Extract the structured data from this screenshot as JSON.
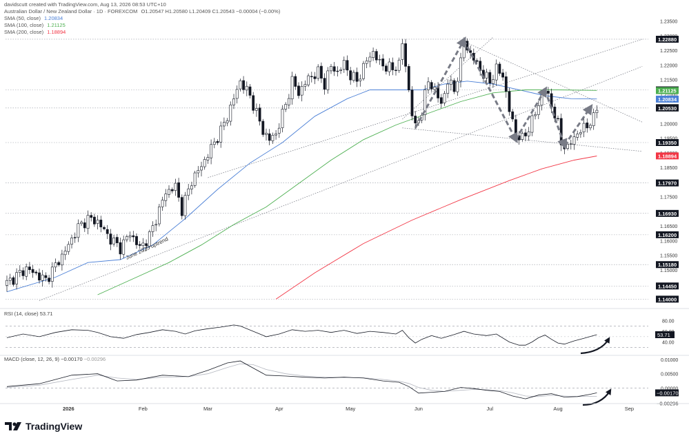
{
  "header": {
    "created": "davidscutt created with TradingView.com, Aug 13, 2026 08:53 UTC+10",
    "symbol": "Australian Dollar / New Zealand Dollar · 1D · FOREXCOM",
    "ohlc": "O1.20547 H1.20580 L1.20409 C1.20543 −0.00004 (−0.00%)",
    "sma": [
      {
        "label": "SMA (50, close)",
        "value": "1.20834",
        "color": "#4a7fd6"
      },
      {
        "label": "SMA (100, close)",
        "value": "1.21125",
        "color": "#4caf50"
      },
      {
        "label": "SMA (200, close)",
        "value": "1.18894",
        "color": "#f23645"
      }
    ]
  },
  "indicators": {
    "rsi_label": "RSI (14, close)",
    "rsi_value": "53.71",
    "macd_label": "MACD (close, 12, 26, 9)",
    "macd_value": "−0.00170",
    "macd_signal": "−0.00296"
  },
  "logo": "TradingView",
  "chart_data": {
    "type": "candlestick",
    "price_axis": {
      "range": [
        1.1375,
        1.2375
      ],
      "ticks": [
        "1.23500",
        "1.23000",
        "1.22500",
        "1.22000",
        "1.21500",
        "1.21000",
        "1.20500",
        "1.20000",
        "1.19500",
        "1.19000",
        "1.18500",
        "1.18000",
        "1.17500",
        "1.17000",
        "1.16500",
        "1.16000",
        "1.15500",
        "1.15000",
        "1.14500",
        "1.14000"
      ],
      "levels": [
        {
          "price": 1.2288,
          "label": "1.22880"
        },
        {
          "price": 1.2115,
          "label": "1.21150"
        },
        {
          "price": 1.2053,
          "label": "1.20530"
        },
        {
          "price": 1.1935,
          "label": "1.19350"
        },
        {
          "price": 1.1797,
          "label": "1.17970"
        },
        {
          "price": 1.1693,
          "label": "1.16930"
        },
        {
          "price": 1.162,
          "label": "1.16200"
        },
        {
          "price": 1.1518,
          "label": "1.15180"
        },
        {
          "price": 1.1445,
          "label": "1.14450"
        },
        {
          "price": 1.14,
          "label": "1.14000"
        }
      ],
      "tags": [
        {
          "price": 1.2288,
          "label": "1.22880",
          "bg": "#131722",
          "fg": "#ffffff"
        },
        {
          "price": 1.2115,
          "label": "1.21150",
          "bg": "#131722",
          "fg": "#ffffff"
        },
        {
          "price": 1.21125,
          "label": "1.21125",
          "bg": "#4caf50",
          "fg": "#ffffff"
        },
        {
          "price": 1.20834,
          "label": "1.20834",
          "bg": "#4a7fd6",
          "fg": "#ffffff"
        },
        {
          "price": 1.20543,
          "label": "1.20543",
          "bg": "#131722",
          "fg": "#ffffff"
        },
        {
          "price": 1.2053,
          "label": "1.20530",
          "bg": "#131722",
          "fg": "#ffffff"
        },
        {
          "price": 1.1935,
          "label": "1.19350",
          "bg": "#131722",
          "fg": "#ffffff"
        },
        {
          "price": 1.18894,
          "label": "1.18894",
          "bg": "#f23645",
          "fg": "#ffffff"
        },
        {
          "price": 1.1797,
          "label": "1.17970",
          "bg": "#131722",
          "fg": "#ffffff"
        },
        {
          "price": 1.1693,
          "label": "1.16930",
          "bg": "#131722",
          "fg": "#ffffff"
        },
        {
          "price": 1.162,
          "label": "1.16200",
          "bg": "#131722",
          "fg": "#ffffff"
        },
        {
          "price": 1.1518,
          "label": "1.15180",
          "bg": "#131722",
          "fg": "#ffffff"
        },
        {
          "price": 1.1445,
          "label": "1.14450",
          "bg": "#131722",
          "fg": "#ffffff"
        },
        {
          "price": 1.14,
          "label": "1.14000",
          "bg": "#131722",
          "fg": "#ffffff"
        }
      ]
    },
    "time_axis": {
      "labels": [
        "2026",
        "Feb",
        "Mar",
        "Apr",
        "May",
        "Jun",
        "Jul",
        "Aug",
        "Sep"
      ],
      "bar_index": [
        19,
        42,
        62,
        84,
        106,
        127,
        149,
        170,
        192
      ]
    },
    "close_anchors": [
      [
        0,
        1.1455
      ],
      [
        6,
        1.1505
      ],
      [
        12,
        1.1465
      ],
      [
        18,
        1.1565
      ],
      [
        22,
        1.1645
      ],
      [
        25,
        1.1675
      ],
      [
        28,
        1.1665
      ],
      [
        32,
        1.1605
      ],
      [
        35,
        1.1575
      ],
      [
        38,
        1.1625
      ],
      [
        41,
        1.1575
      ],
      [
        44,
        1.1615
      ],
      [
        46,
        1.1675
      ],
      [
        49,
        1.1765
      ],
      [
        52,
        1.1785
      ],
      [
        54,
        1.1705
      ],
      [
        57,
        1.1805
      ],
      [
        60,
        1.1855
      ],
      [
        63,
        1.1915
      ],
      [
        66,
        1.1975
      ],
      [
        68,
        1.2025
      ],
      [
        70,
        1.2085
      ],
      [
        72,
        1.2145
      ],
      [
        75,
        1.2095
      ],
      [
        77,
        1.2035
      ],
      [
        79,
        1.1975
      ],
      [
        81,
        1.1945
      ],
      [
        83,
        1.1965
      ],
      [
        86,
        1.2065
      ],
      [
        88,
        1.2145
      ],
      [
        90,
        1.2105
      ],
      [
        93,
        1.2155
      ],
      [
        96,
        1.2175
      ],
      [
        98,
        1.2135
      ],
      [
        100,
        1.2195
      ],
      [
        102,
        1.2175
      ],
      [
        104,
        1.2205
      ],
      [
        106,
        1.2165
      ],
      [
        108,
        1.2145
      ],
      [
        111,
        1.2215
      ],
      [
        113,
        1.2245
      ],
      [
        115,
        1.2205
      ],
      [
        117,
        1.2195
      ],
      [
        119,
        1.2185
      ],
      [
        121,
        1.2205
      ],
      [
        122,
        1.2275
      ],
      [
        123,
        1.2195
      ],
      [
        125,
        1.2035
      ],
      [
        126,
        1.1985
      ],
      [
        128,
        1.2045
      ],
      [
        130,
        1.2145
      ],
      [
        132,
        1.2115
      ],
      [
        134,
        1.2065
      ],
      [
        136,
        1.2145
      ],
      [
        138,
        1.2115
      ],
      [
        140,
        1.2205
      ],
      [
        141,
        1.2285
      ],
      [
        143,
        1.2235
      ],
      [
        145,
        1.2205
      ],
      [
        147,
        1.2165
      ],
      [
        149,
        1.2145
      ],
      [
        151,
        1.2185
      ],
      [
        153,
        1.2165
      ],
      [
        155,
        1.2045
      ],
      [
        157,
        1.1965
      ],
      [
        159,
        1.1945
      ],
      [
        161,
        1.1985
      ],
      [
        163,
        1.2035
      ],
      [
        165,
        1.2095
      ],
      [
        166,
        1.2115
      ],
      [
        168,
        1.2065
      ],
      [
        170,
        1.1995
      ],
      [
        171,
        1.1935
      ],
      [
        173,
        1.1915
      ],
      [
        175,
        1.1955
      ],
      [
        177,
        1.1975
      ],
      [
        179,
        1.1995
      ],
      [
        181,
        1.2015
      ],
      [
        182,
        1.2054
      ]
    ],
    "sma": [
      {
        "name": "SMA (50, close)",
        "color": "#4a7fd6",
        "points": [
          [
            0,
            1.1425
          ],
          [
            15,
            1.1475
          ],
          [
            25,
            1.1525
          ],
          [
            35,
            1.1535
          ],
          [
            45,
            1.1585
          ],
          [
            55,
            1.1675
          ],
          [
            65,
            1.1775
          ],
          [
            75,
            1.1865
          ],
          [
            85,
            1.1935
          ],
          [
            95,
            1.2025
          ],
          [
            105,
            1.2085
          ],
          [
            112,
            1.2115
          ],
          [
            120,
            1.2115
          ],
          [
            128,
            1.2115
          ],
          [
            135,
            1.2135
          ],
          [
            142,
            1.2145
          ],
          [
            150,
            1.2135
          ],
          [
            158,
            1.2115
          ],
          [
            166,
            1.2095
          ],
          [
            174,
            1.2085
          ],
          [
            182,
            1.2084
          ]
        ]
      },
      {
        "name": "SMA (100, close)",
        "color": "#4caf50",
        "points": [
          [
            28,
            1.1415
          ],
          [
            40,
            1.1475
          ],
          [
            50,
            1.1525
          ],
          [
            60,
            1.1585
          ],
          [
            70,
            1.1655
          ],
          [
            80,
            1.1715
          ],
          [
            90,
            1.1795
          ],
          [
            100,
            1.1875
          ],
          [
            110,
            1.1945
          ],
          [
            120,
            1.1995
          ],
          [
            130,
            1.2035
          ],
          [
            140,
            1.2075
          ],
          [
            150,
            1.2105
          ],
          [
            160,
            1.2115
          ],
          [
            170,
            1.2115
          ],
          [
            182,
            1.2113
          ]
        ]
      },
      {
        "name": "SMA (200, close)",
        "color": "#f23645",
        "points": [
          [
            83,
            1.14
          ],
          [
            95,
            1.149
          ],
          [
            110,
            1.159
          ],
          [
            125,
            1.167
          ],
          [
            140,
            1.174
          ],
          [
            155,
            1.1805
          ],
          [
            165,
            1.1845
          ],
          [
            175,
            1.1875
          ],
          [
            182,
            1.1889
          ]
        ]
      }
    ],
    "trendlines": [
      {
        "from": [
          62,
          1.1815
        ],
        "to": [
          196,
          1.2288
        ],
        "style": "dotted"
      },
      {
        "from": [
          10,
          1.1395
        ],
        "to": [
          196,
          1.2195
        ],
        "style": "dotted"
      },
      {
        "from": [
          122,
          1.1985
        ],
        "to": [
          196,
          1.1905
        ],
        "style": "dotted"
      },
      {
        "from": [
          122,
          1.2015
        ],
        "to": [
          150,
          1.2295
        ],
        "style": "dotted"
      },
      {
        "from": [
          140,
          1.2285
        ],
        "to": [
          196,
          1.2005
        ],
        "style": "dotted"
      }
    ],
    "pattern_arrows": [
      [
        [
          126,
          1.1985
        ],
        [
          141,
          1.2285
        ]
      ],
      [
        [
          141,
          1.2285
        ],
        [
          157,
          1.1945
        ]
      ],
      [
        [
          157,
          1.1945
        ],
        [
          166,
          1.2115
        ]
      ],
      [
        [
          166,
          1.2115
        ],
        [
          172,
          1.1925
        ]
      ],
      [
        [
          172,
          1.1925
        ],
        [
          180,
          1.2055
        ]
      ]
    ],
    "annotation": {
      "text": "June 2025 uptrend",
      "at": [
        37,
        1.1535
      ],
      "angle": -25
    },
    "rsi": {
      "range": [
        20,
        90
      ],
      "ticks": [
        "80.00",
        "60.00",
        "40.00"
      ],
      "band": [
        30,
        70
      ],
      "mid": 50,
      "points": [
        [
          0,
          48
        ],
        [
          5,
          55
        ],
        [
          10,
          50
        ],
        [
          15,
          58
        ],
        [
          20,
          63
        ],
        [
          25,
          62
        ],
        [
          28,
          58
        ],
        [
          32,
          50
        ],
        [
          36,
          47
        ],
        [
          40,
          54
        ],
        [
          44,
          58
        ],
        [
          48,
          63
        ],
        [
          52,
          60
        ],
        [
          55,
          55
        ],
        [
          58,
          61
        ],
        [
          62,
          65
        ],
        [
          66,
          68
        ],
        [
          70,
          72
        ],
        [
          72,
          70
        ],
        [
          76,
          60
        ],
        [
          80,
          50
        ],
        [
          84,
          55
        ],
        [
          88,
          63
        ],
        [
          92,
          60
        ],
        [
          96,
          62
        ],
        [
          100,
          58
        ],
        [
          104,
          62
        ],
        [
          108,
          56
        ],
        [
          112,
          60
        ],
        [
          116,
          58
        ],
        [
          120,
          55
        ],
        [
          122,
          62
        ],
        [
          124,
          48
        ],
        [
          126,
          38
        ],
        [
          128,
          45
        ],
        [
          131,
          52
        ],
        [
          134,
          47
        ],
        [
          138,
          54
        ],
        [
          141,
          60
        ],
        [
          144,
          55
        ],
        [
          148,
          52
        ],
        [
          151,
          55
        ],
        [
          155,
          40
        ],
        [
          158,
          34
        ],
        [
          160,
          34
        ],
        [
          162,
          40
        ],
        [
          164,
          48
        ],
        [
          166,
          53
        ],
        [
          168,
          45
        ],
        [
          170,
          38
        ],
        [
          172,
          36
        ],
        [
          175,
          42
        ],
        [
          178,
          47
        ],
        [
          181,
          52
        ],
        [
          182,
          53.7
        ]
      ]
    },
    "macd": {
      "range": [
        -0.0045,
        0.0105
      ],
      "ticks": [
        "0.01000",
        "0.00500",
        "0.00000"
      ],
      "macd_points": [
        [
          0,
          0.0005
        ],
        [
          10,
          0.0015
        ],
        [
          20,
          0.0045
        ],
        [
          28,
          0.005
        ],
        [
          34,
          0.0025
        ],
        [
          40,
          0.0028
        ],
        [
          48,
          0.0045
        ],
        [
          56,
          0.004
        ],
        [
          62,
          0.0062
        ],
        [
          68,
          0.0088
        ],
        [
          72,
          0.0095
        ],
        [
          76,
          0.007
        ],
        [
          80,
          0.0045
        ],
        [
          86,
          0.0042
        ],
        [
          92,
          0.0038
        ],
        [
          98,
          0.0035
        ],
        [
          104,
          0.0038
        ],
        [
          110,
          0.0035
        ],
        [
          116,
          0.0025
        ],
        [
          121,
          0.002
        ],
        [
          124,
          0.0005
        ],
        [
          127,
          -0.0018
        ],
        [
          131,
          -0.0015
        ],
        [
          135,
          -0.0012
        ],
        [
          140,
          0.0002
        ],
        [
          144,
          -0.0002
        ],
        [
          148,
          -0.0008
        ],
        [
          152,
          -0.0012
        ],
        [
          156,
          -0.0028
        ],
        [
          160,
          -0.0038
        ],
        [
          164,
          -0.0025
        ],
        [
          168,
          -0.002
        ],
        [
          172,
          -0.0032
        ],
        [
          176,
          -0.003
        ],
        [
          180,
          -0.0022
        ],
        [
          182,
          -0.0017
        ]
      ],
      "signal_points": [
        [
          0,
          0.0002
        ],
        [
          10,
          0.001
        ],
        [
          20,
          0.003
        ],
        [
          28,
          0.0045
        ],
        [
          34,
          0.0035
        ],
        [
          40,
          0.003
        ],
        [
          48,
          0.0038
        ],
        [
          56,
          0.004
        ],
        [
          62,
          0.005
        ],
        [
          68,
          0.0072
        ],
        [
          72,
          0.0085
        ],
        [
          76,
          0.0082
        ],
        [
          80,
          0.0065
        ],
        [
          86,
          0.005
        ],
        [
          92,
          0.0042
        ],
        [
          98,
          0.0038
        ],
        [
          104,
          0.0037
        ],
        [
          110,
          0.0036
        ],
        [
          116,
          0.003
        ],
        [
          121,
          0.0024
        ],
        [
          124,
          0.0016
        ],
        [
          127,
          0.0002
        ],
        [
          131,
          -0.0008
        ],
        [
          135,
          -0.0012
        ],
        [
          140,
          -0.0008
        ],
        [
          144,
          -0.0005
        ],
        [
          148,
          -0.0006
        ],
        [
          152,
          -0.0009
        ],
        [
          156,
          -0.0017
        ],
        [
          160,
          -0.0028
        ],
        [
          164,
          -0.003
        ],
        [
          168,
          -0.0026
        ],
        [
          172,
          -0.0028
        ],
        [
          176,
          -0.003
        ],
        [
          180,
          -0.0029
        ],
        [
          182,
          -0.00296
        ]
      ]
    },
    "colors": {
      "candle": "#131722",
      "grid": "#9598a1",
      "arrow": "#787b86"
    }
  }
}
